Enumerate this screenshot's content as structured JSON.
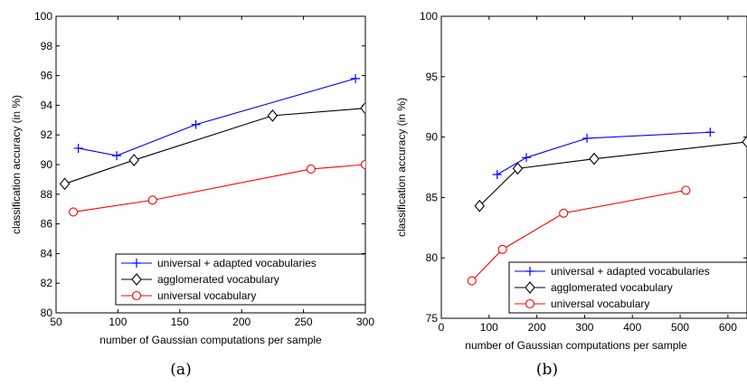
{
  "chart_data": [
    {
      "type": "line",
      "caption": "(a)",
      "xlabel": "number of Gaussian computations per sample",
      "ylabel": "classification accuracy  (in %)",
      "xlim": [
        50,
        300
      ],
      "ylim": [
        80,
        100
      ],
      "xticks": [
        50,
        100,
        150,
        200,
        250,
        300
      ],
      "yticks": [
        80,
        82,
        84,
        86,
        88,
        90,
        92,
        94,
        96,
        98,
        100
      ],
      "grid": false,
      "legend_position": "bottom-right",
      "series": [
        {
          "name": "universal + adapted vocabularies",
          "color": "#0000ff",
          "marker": "plus",
          "x": [
            68,
            99,
            163,
            292
          ],
          "y": [
            91.1,
            90.6,
            92.7,
            95.8
          ]
        },
        {
          "name": "agglomerated vocabulary",
          "color": "#000000",
          "marker": "diamond",
          "x": [
            57,
            113,
            225,
            300
          ],
          "y": [
            88.7,
            90.3,
            93.3,
            93.8
          ]
        },
        {
          "name": "universal vocabulary",
          "color": "#ff0000",
          "marker": "circle",
          "x": [
            64,
            128,
            256,
            300
          ],
          "y": [
            86.8,
            87.6,
            89.7,
            90.0
          ]
        }
      ]
    },
    {
      "type": "line",
      "caption": "(b)",
      "xlabel": "number of Gaussian computations per sample",
      "ylabel": "classification accuracy  (in %)",
      "xlim": [
        0,
        640
      ],
      "ylim": [
        75,
        100
      ],
      "xticks": [
        0,
        100,
        200,
        300,
        400,
        500,
        600
      ],
      "yticks": [
        75,
        80,
        85,
        90,
        95,
        100
      ],
      "grid": false,
      "legend_position": "bottom-right",
      "series": [
        {
          "name": "universal + adapted vocabularies",
          "color": "#0000ff",
          "marker": "plus",
          "x": [
            117,
            178,
            305,
            563
          ],
          "y": [
            86.9,
            88.3,
            89.9,
            90.4
          ]
        },
        {
          "name": "agglomerated vocabulary",
          "color": "#000000",
          "marker": "diamond",
          "x": [
            80,
            160,
            320,
            640
          ],
          "y": [
            84.3,
            87.4,
            88.2,
            89.6
          ]
        },
        {
          "name": "universal vocabulary",
          "color": "#ff0000",
          "marker": "circle",
          "x": [
            64,
            128,
            256,
            512
          ],
          "y": [
            78.1,
            80.7,
            83.7,
            85.6
          ]
        }
      ]
    }
  ]
}
